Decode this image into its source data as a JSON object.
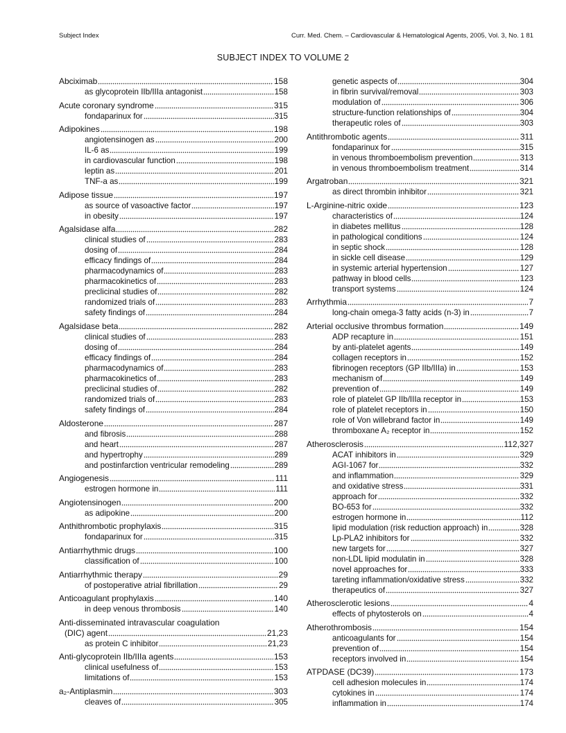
{
  "header": {
    "left": "Subject Index",
    "right": "Curr. Med. Chem. – Cardiovascular & Hematological Agents, 2005, Vol. 3, No. 1   81"
  },
  "title": "SUBJECT INDEX TO VOLUME 2",
  "columns": [
    {
      "groups": [
        {
          "main": {
            "term": "Abciximab",
            "pages": "158"
          },
          "subs": [
            {
              "term": "as glycoprotein IIb/IIIa antagonist",
              "pages": "158"
            }
          ]
        },
        {
          "main": {
            "term": "Acute coronary syndrome",
            "pages": "315"
          },
          "subs": [
            {
              "term": "fondaparinux for",
              "pages": "315"
            }
          ]
        },
        {
          "main": {
            "term": "Adipokines",
            "pages": "198"
          },
          "subs": [
            {
              "term": "angiotensinogen as",
              "pages": "200"
            },
            {
              "term": "IL-6 as",
              "pages": "199"
            },
            {
              "term": "in cardiovascular function",
              "pages": "198"
            },
            {
              "term": "leptin as",
              "pages": "201"
            },
            {
              "term": "TNF-a as",
              "pages": "199"
            }
          ]
        },
        {
          "main": {
            "term": "Adipose tissue",
            "pages": "197"
          },
          "subs": [
            {
              "term": "as source of vasoactive factor",
              "pages": "197"
            },
            {
              "term": "in obesity",
              "pages": "197"
            }
          ]
        },
        {
          "main": {
            "term": "Agalsidase alfa",
            "pages": "282"
          },
          "subs": [
            {
              "term": "clinical studies of",
              "pages": "283"
            },
            {
              "term": "dosing of",
              "pages": "284"
            },
            {
              "term": "efficacy findings of",
              "pages": "284"
            },
            {
              "term": "pharmacodynamics of",
              "pages": "283"
            },
            {
              "term": "pharmacokinetics of",
              "pages": "283"
            },
            {
              "term": "preclicinal studies of",
              "pages": "282"
            },
            {
              "term": "randomized trials of",
              "pages": "283"
            },
            {
              "term": "safety findings of",
              "pages": "284"
            }
          ]
        },
        {
          "main": {
            "term": "Agalsidase beta",
            "pages": "282"
          },
          "subs": [
            {
              "term": "clinical studies of",
              "pages": "283"
            },
            {
              "term": "dosing of",
              "pages": "284"
            },
            {
              "term": "efficacy findings of",
              "pages": "284"
            },
            {
              "term": "pharmacodynamics of",
              "pages": "283"
            },
            {
              "term": "pharmacokinetics of",
              "pages": "283"
            },
            {
              "term": "preclicinal studies of",
              "pages": "282"
            },
            {
              "term": "randomized trials of",
              "pages": "283"
            },
            {
              "term": "safety findings of",
              "pages": "284"
            }
          ]
        },
        {
          "main": {
            "term": "Aldosterone",
            "pages": "287"
          },
          "subs": [
            {
              "term": "and fibrosis",
              "pages": "288"
            },
            {
              "term": "and heart",
              "pages": "287"
            },
            {
              "term": "and hypertrophy",
              "pages": "289"
            },
            {
              "term": "and postinfarction ventricular remodeling",
              "pages": "289"
            }
          ]
        },
        {
          "main": {
            "term": "Angiogenesis",
            "pages": "111"
          },
          "subs": [
            {
              "term": "estrogen hormone in",
              "pages": "111"
            }
          ]
        },
        {
          "main": {
            "term": "Angiotensinogen",
            "pages": "200"
          },
          "subs": [
            {
              "term": "as adipokine",
              "pages": "200"
            }
          ]
        },
        {
          "main": {
            "term": "Anthithrombotic prophylaxis",
            "pages": "315"
          },
          "subs": [
            {
              "term": "fondaparinux for",
              "pages": "315"
            }
          ]
        },
        {
          "main": {
            "term": "Antiarrhythmic drugs",
            "pages": "100"
          },
          "subs": [
            {
              "term": "classification of",
              "pages": "100"
            }
          ]
        },
        {
          "main": {
            "term": "Antiarrhythmic therapy",
            "pages": "29"
          },
          "subs": [
            {
              "term": "of postoperative atrial fibrillation",
              "pages": "29"
            }
          ]
        },
        {
          "main": {
            "term": "Anticoagulant prophylaxis",
            "pages": "140"
          },
          "subs": [
            {
              "term": "in deep venous thrombosis",
              "pages": "140"
            }
          ]
        },
        {
          "main": {
            "term": "Anti-disseminated intravascular coagulation",
            "pages": ""
          },
          "cont": {
            "term": "(DIC) agent",
            "pages": "21,23"
          },
          "subs": [
            {
              "term": "as protein C inhibitor",
              "pages": "21,23"
            }
          ]
        },
        {
          "main": {
            "term": "Anti-glycoprotein IIb/IIIa agents",
            "pages": "153"
          },
          "subs": [
            {
              "term": "clinical usefulness of",
              "pages": "153"
            },
            {
              "term": "limitations of",
              "pages": "153"
            }
          ]
        },
        {
          "main": {
            "term": "a₂-Antiplasmin",
            "pages": "303"
          },
          "subs": [
            {
              "term": "cleaves of",
              "pages": "305"
            }
          ]
        }
      ]
    },
    {
      "groups": [
        {
          "main": null,
          "subs": [
            {
              "term": "genetic aspects of",
              "pages": "304"
            },
            {
              "term": "in fibrin survival/removal",
              "pages": "303"
            },
            {
              "term": "modulation of",
              "pages": "306"
            },
            {
              "term": "structure-function relationships of",
              "pages": "304"
            },
            {
              "term": "therapeutic roles of",
              "pages": "303"
            }
          ]
        },
        {
          "main": {
            "term": "Antithrombotic agents",
            "pages": "311"
          },
          "subs": [
            {
              "term": "fondaparinux for",
              "pages": "315"
            },
            {
              "term": "in venous thromboembolism prevention",
              "pages": "313"
            },
            {
              "term": "in venous thromboembolism treatment",
              "pages": "314"
            }
          ]
        },
        {
          "main": {
            "term": "Argatroban",
            "pages": "321"
          },
          "subs": [
            {
              "term": "as direct thrombin inhibitor",
              "pages": "321"
            }
          ]
        },
        {
          "main": {
            "term": "L-Arginine-nitric oxide",
            "pages": "123"
          },
          "subs": [
            {
              "term": "characteristics of",
              "pages": "124"
            },
            {
              "term": "in diabetes mellitus",
              "pages": "128"
            },
            {
              "term": "in pathological conditions",
              "pages": "124"
            },
            {
              "term": "in septic shock",
              "pages": "128"
            },
            {
              "term": "in sickle cell disease",
              "pages": "129"
            },
            {
              "term": "in systemic arterial hypertension",
              "pages": "127"
            },
            {
              "term": "pathway in blood cells",
              "pages": "123"
            },
            {
              "term": "transport systems",
              "pages": "124"
            }
          ]
        },
        {
          "main": {
            "term": "Arrhythmia",
            "pages": "7"
          },
          "subs": [
            {
              "term": "long-chain omega-3 fatty acids (n-3) in",
              "pages": "7"
            }
          ]
        },
        {
          "main": {
            "term": "Arterial occlusive thrombus formation",
            "pages": "149"
          },
          "subs": [
            {
              "term": "ADP recapture in",
              "pages": "151"
            },
            {
              "term": "by anti-platelet agents",
              "pages": "149"
            },
            {
              "term": "collagen receptors in",
              "pages": "152"
            },
            {
              "term": "fibrinogen receptors (GP IIb/IIIa) in",
              "pages": "153"
            },
            {
              "term": "mechanism of",
              "pages": "149"
            },
            {
              "term": "prevention of",
              "pages": "149"
            },
            {
              "term": "role of platelet GP IIb/IIIa receptor in",
              "pages": "153"
            },
            {
              "term": "role of platelet receptors in",
              "pages": "150"
            },
            {
              "term": "role of Von willebrand factor in",
              "pages": "149"
            },
            {
              "term": "thromboxane A₂ receptor in",
              "pages": "152"
            }
          ]
        },
        {
          "main": {
            "term": "Atherosclerosis",
            "pages": "112,327"
          },
          "subs": [
            {
              "term": "ACAT inhibitors in",
              "pages": "329"
            },
            {
              "term": "AGI-1067 for",
              "pages": "332"
            },
            {
              "term": "and inflammation",
              "pages": "329"
            },
            {
              "term": "and oxidative stress",
              "pages": "331"
            },
            {
              "term": "approach for",
              "pages": "332"
            },
            {
              "term": "BO-653 for",
              "pages": "332"
            },
            {
              "term": "estrogen hormone in",
              "pages": "112"
            },
            {
              "term": "lipid modulation (risk reduction approach) in",
              "pages": "328"
            },
            {
              "term": "Lp-PLA2 inhibitors for",
              "pages": "332"
            },
            {
              "term": "new targets for",
              "pages": "327"
            },
            {
              "term": "non-LDL lipid modulatin in",
              "pages": "328"
            },
            {
              "term": "novel approaches for",
              "pages": "333"
            },
            {
              "term": "tareting inflammation/oxidative stress",
              "pages": "332"
            },
            {
              "term": "therapeutics of",
              "pages": "327"
            }
          ]
        },
        {
          "main": {
            "term": "Atherosclerotic lesions",
            "pages": "4"
          },
          "subs": [
            {
              "term": "effects of phytosterols on",
              "pages": "4"
            }
          ]
        },
        {
          "main": {
            "term": "Atherothrombosis",
            "pages": "154"
          },
          "subs": [
            {
              "term": "anticoagulants for",
              "pages": "154"
            },
            {
              "term": "prevention of",
              "pages": "154"
            },
            {
              "term": "receptors involved in",
              "pages": "154"
            }
          ]
        },
        {
          "main": {
            "term": "ATPDASE (DC39)",
            "pages": "173"
          },
          "subs": [
            {
              "term": "cell adhesion molecules in",
              "pages": "174"
            },
            {
              "term": "cytokines in",
              "pages": "174"
            },
            {
              "term": "inflammation in",
              "pages": "174"
            }
          ]
        }
      ]
    }
  ]
}
